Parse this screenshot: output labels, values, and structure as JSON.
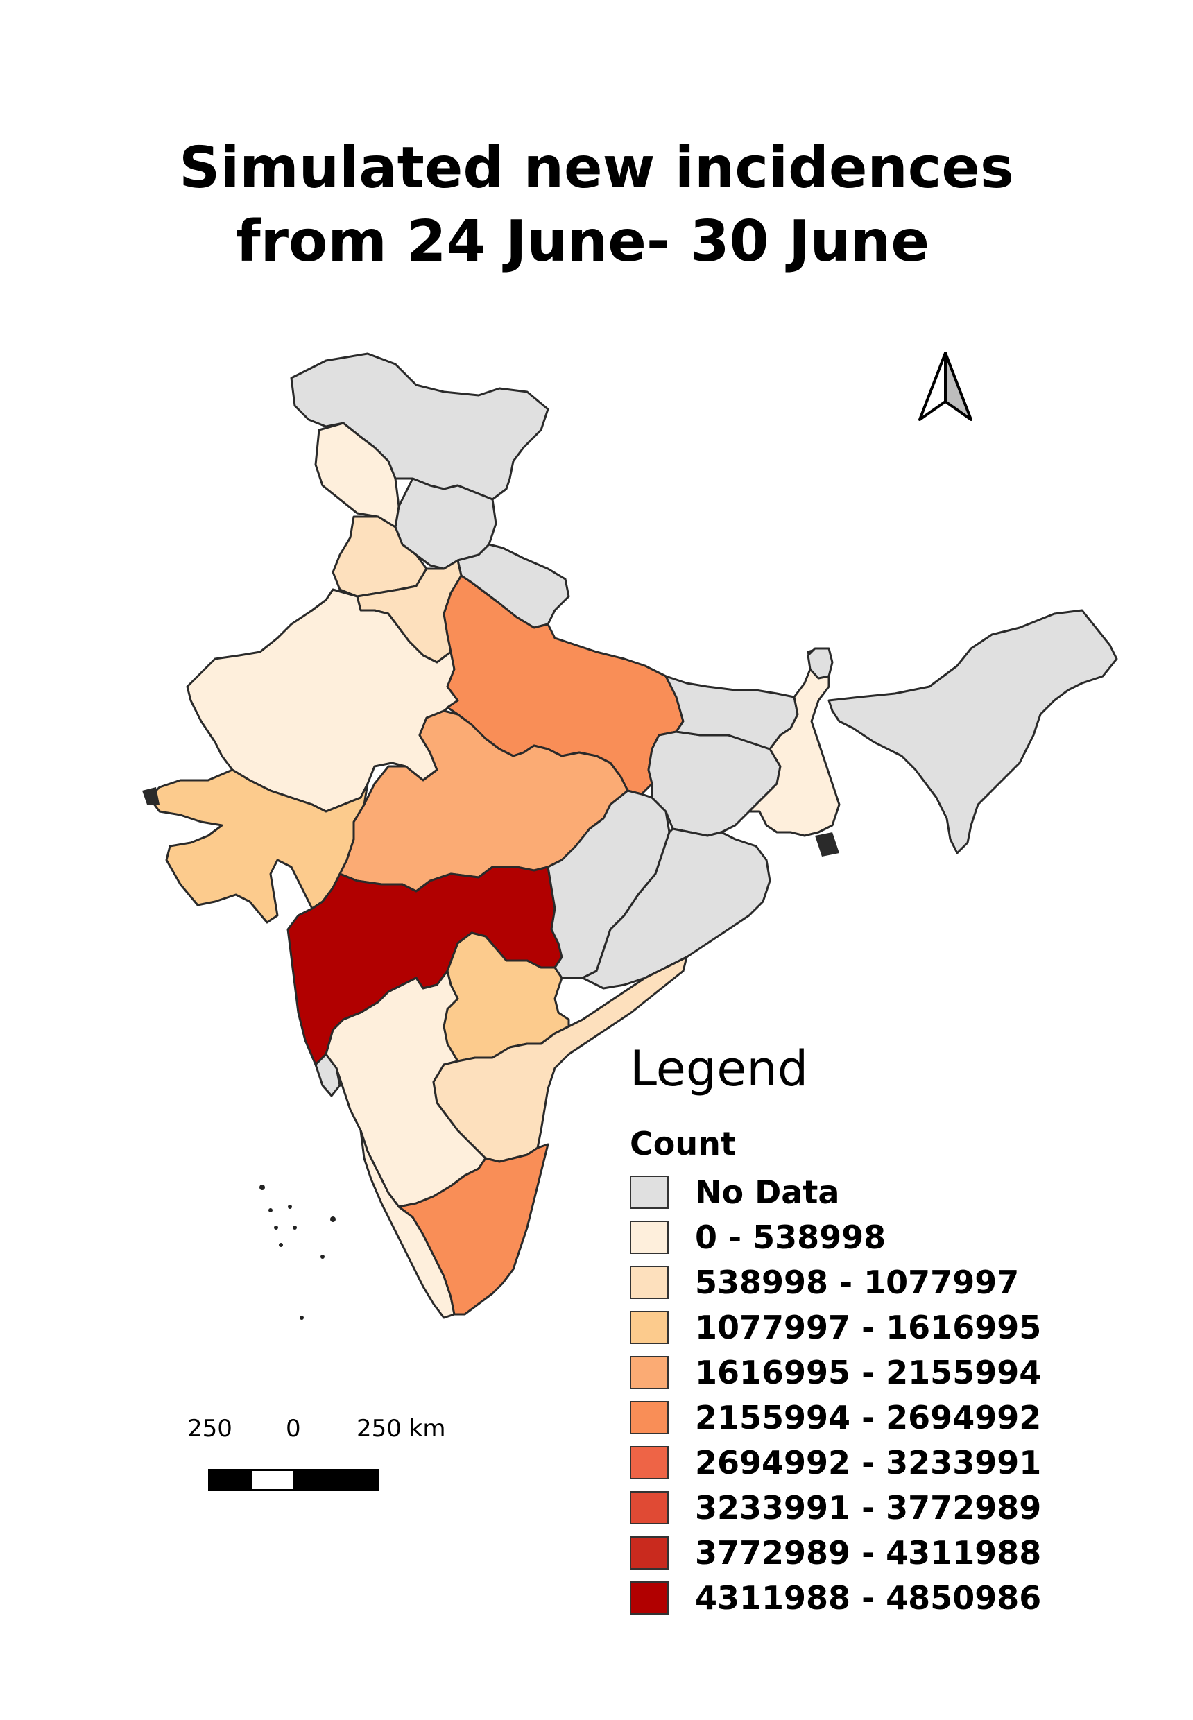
{
  "title": {
    "line1": "Simulated new incidences",
    "line2": "from 24 June- 30 June"
  },
  "legend": {
    "heading": "Legend",
    "field": "Count",
    "classes": [
      {
        "label": "No Data",
        "color": "#e0e0e0"
      },
      {
        "label": "0 - 538998",
        "color": "#feefdc"
      },
      {
        "label": "538998 - 1077997",
        "color": "#fde0bd"
      },
      {
        "label": "1077997 - 1616995",
        "color": "#fccb8d"
      },
      {
        "label": "1616995 - 2155994",
        "color": "#fbab74"
      },
      {
        "label": "2155994 - 2694992",
        "color": "#f98e57"
      },
      {
        "label": "2694992 - 3233991",
        "color": "#ee6446"
      },
      {
        "label": "3233991 - 3772989",
        "color": "#e04a34"
      },
      {
        "label": "3772989 - 4311988",
        "color": "#c92a1e"
      },
      {
        "label": "4311988 - 4850986",
        "color": "#b10000"
      }
    ]
  },
  "scale_bar": {
    "left_label": "250",
    "mid_label": "0",
    "right_label": "250 km"
  },
  "north_arrow": {
    "icon": "north-arrow-icon"
  }
}
